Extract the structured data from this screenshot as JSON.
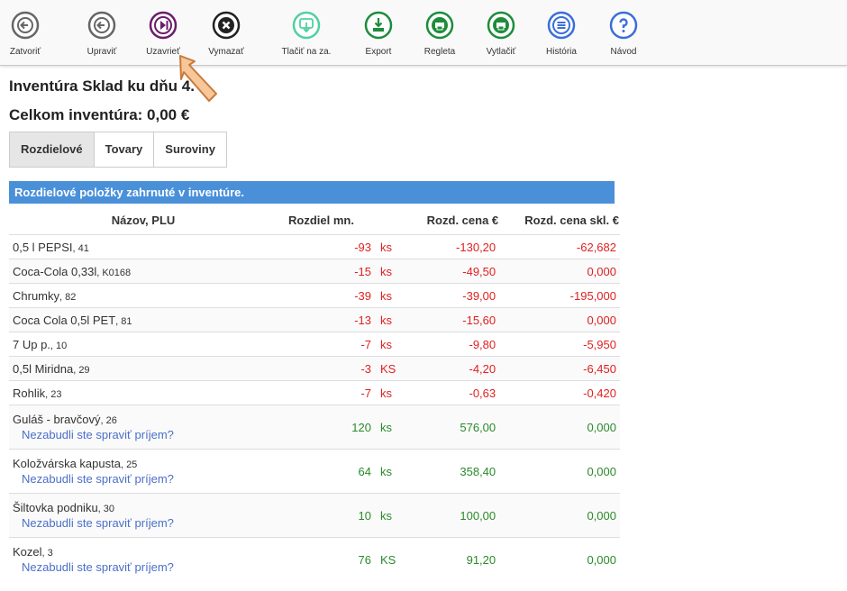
{
  "toolbar": [
    "Zatvoriť",
    "Upraviť",
    "Uzavrieť",
    "Vymazať",
    "Tlačiť na za.",
    "Export",
    "Regleta",
    "Vytlačiť",
    "História",
    "Návod"
  ],
  "header": {
    "title": "Inventúra Sklad ku dňu 4.",
    "total": "Celkom inventúra: 0,00 €"
  },
  "tabs": [
    "Rozdielové",
    "Tovary",
    "Suroviny"
  ],
  "table": {
    "caption": "Rozdielové položky zahrnuté v inventúre.",
    "columns": [
      "Názov, PLU",
      "Rozdiel mn.",
      "Rozd. cena €",
      "Rozd. cena skl. €"
    ],
    "rows": [
      {
        "name": "0,5 l PEPSI",
        "plu": ", 41",
        "qty": "-93",
        "unit": "ks",
        "price": "-130,20",
        "stock_price": "-62,682"
      },
      {
        "name": "Coca-Cola 0,33l",
        "plu": ", K0168",
        "qty": "-15",
        "unit": "ks",
        "price": "-49,50",
        "stock_price": "0,000"
      },
      {
        "name": "Chrumky",
        "plu": ", 82",
        "qty": "-39",
        "unit": "ks",
        "price": "-39,00",
        "stock_price": "-195,000"
      },
      {
        "name": "Coca Cola 0,5l PET",
        "plu": ", 81",
        "qty": "-13",
        "unit": "ks",
        "price": "-15,60",
        "stock_price": "0,000"
      },
      {
        "name": "7 Up p.",
        "plu": ", 10",
        "qty": "-7",
        "unit": "ks",
        "price": "-9,80",
        "stock_price": "-5,950"
      },
      {
        "name": "0,5l Miridna",
        "plu": ", 29",
        "qty": "-3",
        "unit": "KS",
        "price": "-4,20",
        "stock_price": "-6,450"
      },
      {
        "name": "Rohlik",
        "plu": ", 23",
        "qty": "-7",
        "unit": "ks",
        "price": "-0,63",
        "stock_price": "-0,420"
      },
      {
        "name": "Guláš - bravčový",
        "plu": ", 26",
        "note": "Nezabudli ste spraviť príjem?",
        "qty": "120",
        "unit": "ks",
        "price": "576,00",
        "stock_price": "0,000"
      },
      {
        "name": "Koložvárska kapusta",
        "plu": ", 25",
        "note": "Nezabudli ste spraviť príjem?",
        "qty": "64",
        "unit": "ks",
        "price": "358,40",
        "stock_price": "0,000"
      },
      {
        "name": "Šiltovka podniku",
        "plu": ", 30",
        "note": "Nezabudli ste spraviť príjem?",
        "qty": "10",
        "unit": "ks",
        "price": "100,00",
        "stock_price": "0,000"
      },
      {
        "name": "Kozel",
        "plu": ", 3",
        "note": "Nezabudli ste spraviť príjem?",
        "qty": "76",
        "unit": "KS",
        "price": "91,20",
        "stock_price": "0,000"
      }
    ]
  }
}
